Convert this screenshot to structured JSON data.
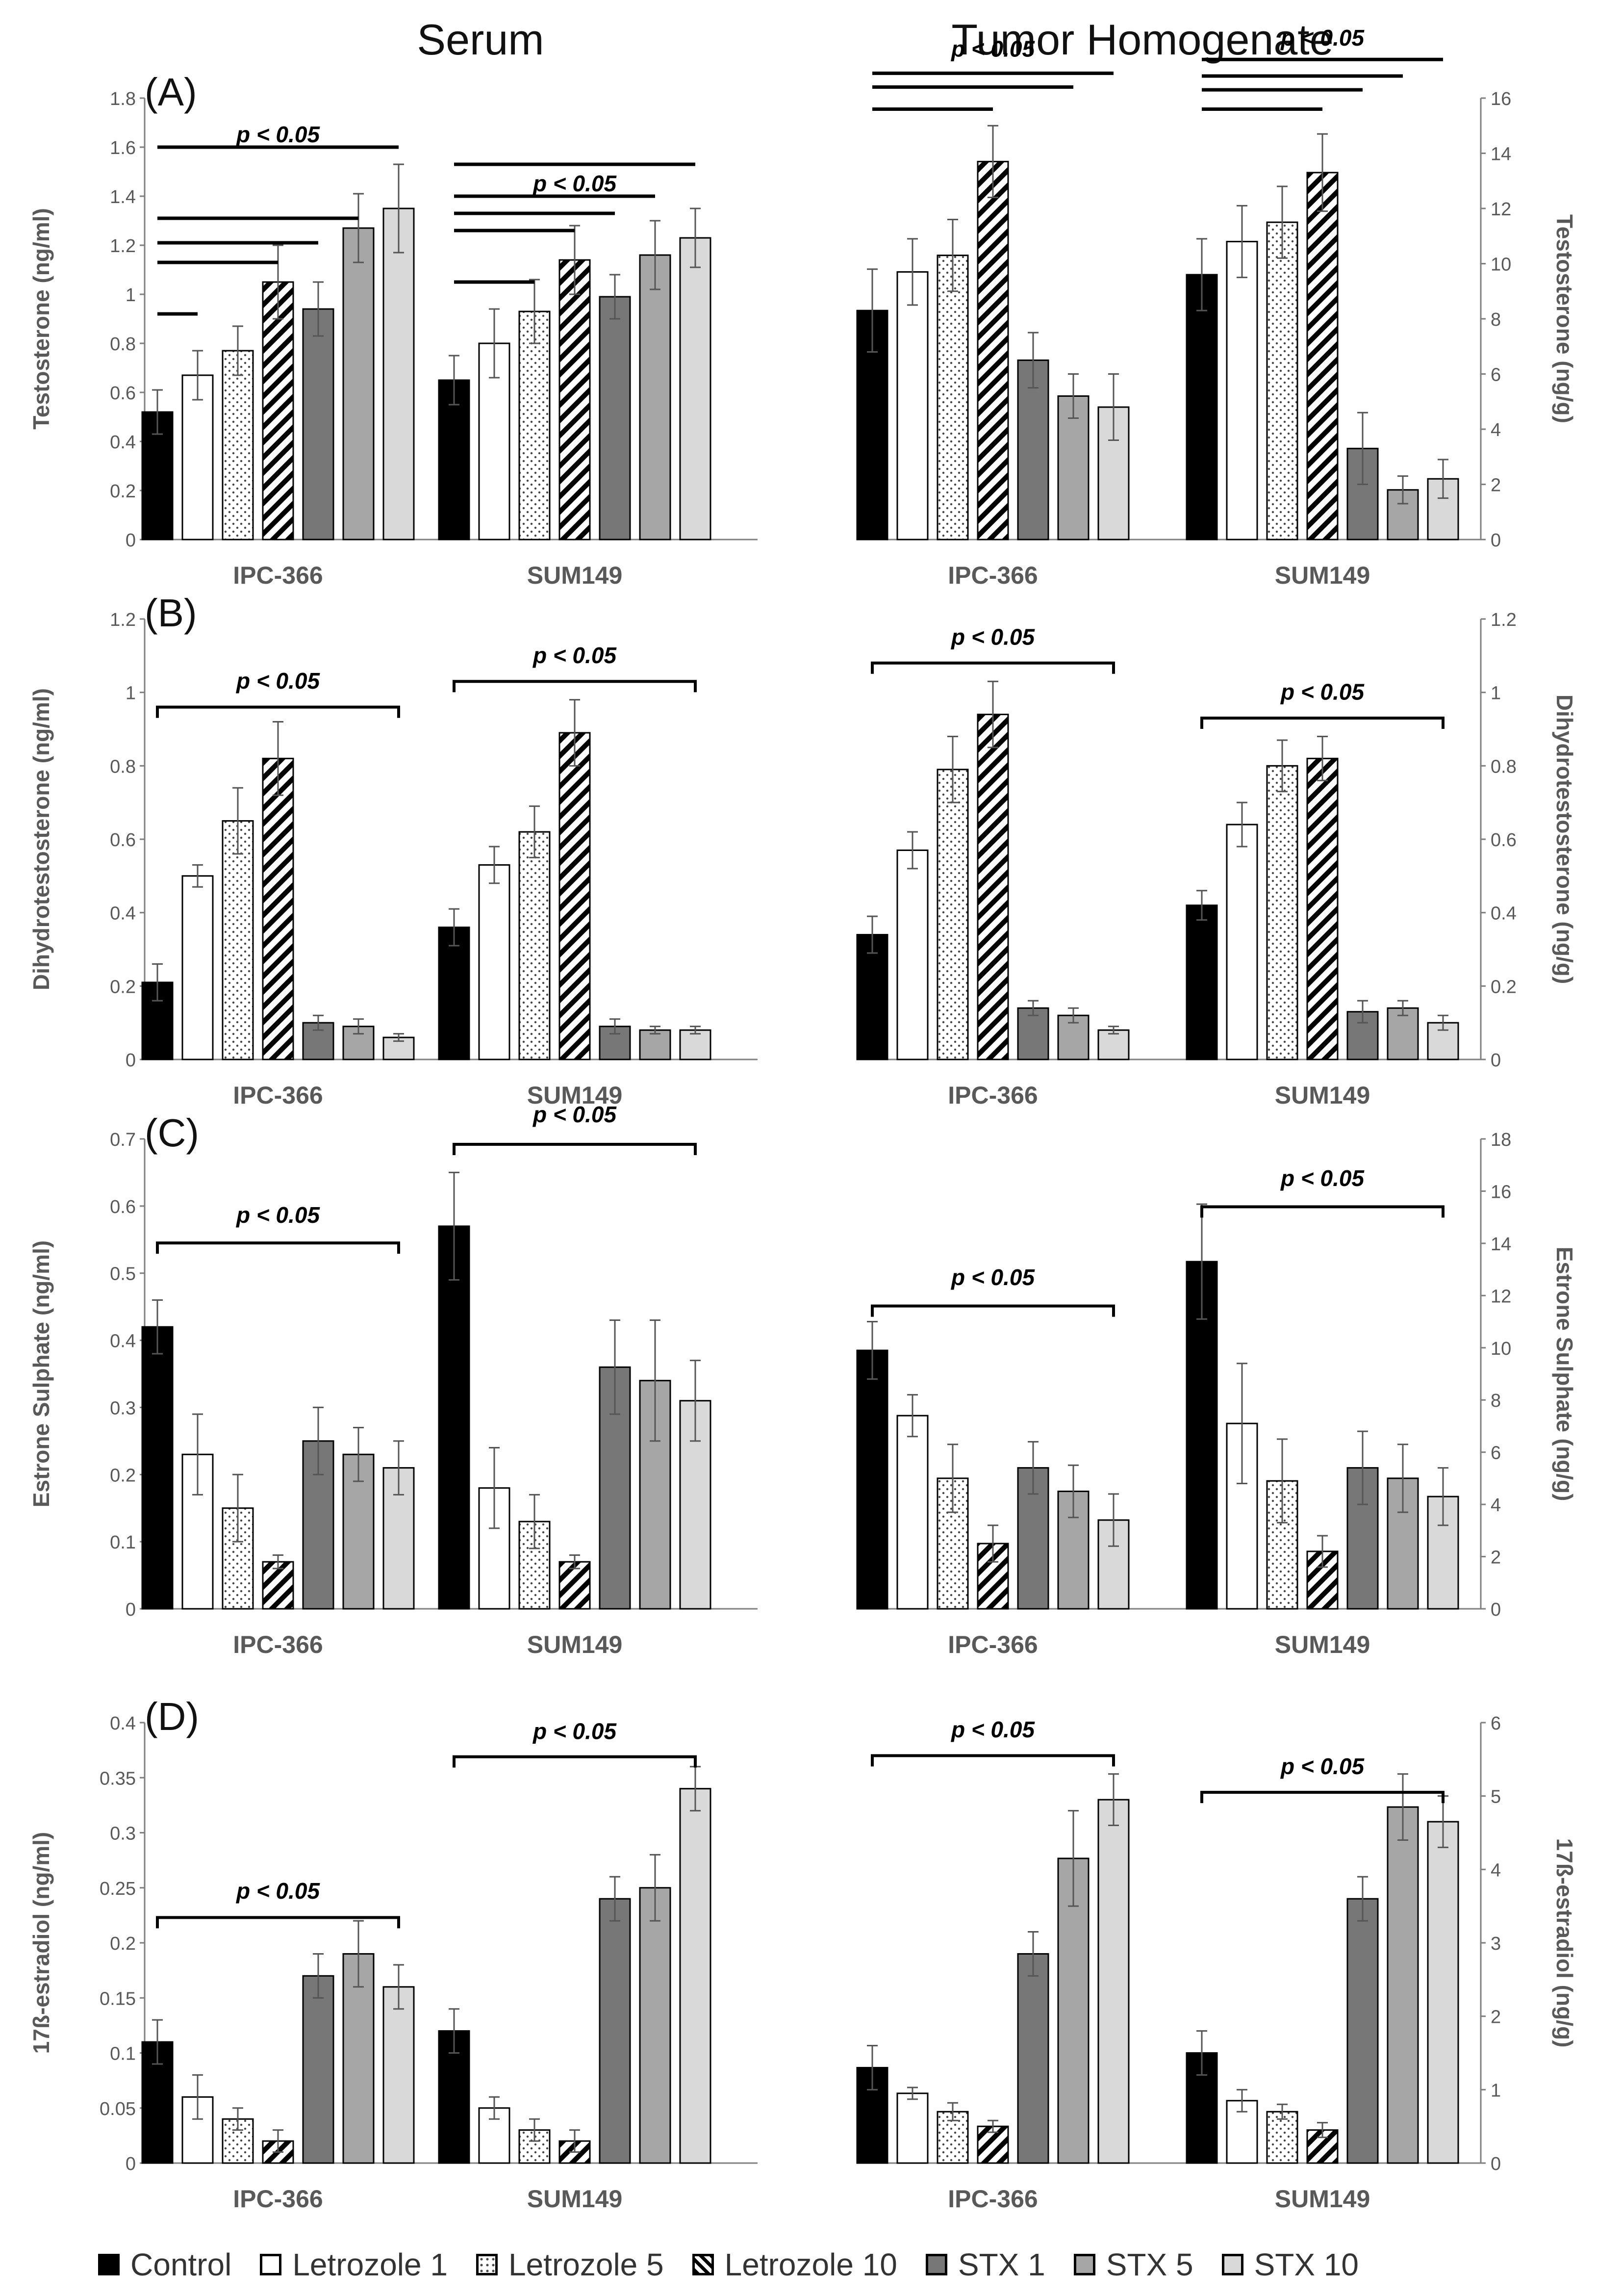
{
  "figure": {
    "column_titles": [
      "Serum",
      "Tumor Homogenate"
    ],
    "legend": [
      {
        "label": "Control",
        "fill": "#000000",
        "pattern": "solid"
      },
      {
        "label": "Letrozole 1",
        "fill": "#ffffff",
        "pattern": "solid"
      },
      {
        "label": "Letrozole 5",
        "fill": "#ffffff",
        "pattern": "dots"
      },
      {
        "label": "Letrozole 10",
        "fill": "#ffffff",
        "pattern": "diag"
      },
      {
        "label": "STX 1",
        "fill": "#777777",
        "pattern": "solid"
      },
      {
        "label": "STX 5",
        "fill": "#a6a6a6",
        "pattern": "solid"
      },
      {
        "label": "STX 10",
        "fill": "#d9d9d9",
        "pattern": "solid"
      }
    ]
  },
  "chart_data": [
    {
      "type": "bar",
      "panel": "(A)",
      "column": "Serum",
      "ylabel": "Testosterone (ng/ml)",
      "axis_side": "left",
      "ylim": [
        0,
        1.8
      ],
      "ticks": [
        "0",
        "0.2",
        "0.4",
        "0.6",
        "0.8",
        "1",
        "1.2",
        "1.4",
        "1.6",
        "1.8"
      ],
      "categories": [
        "IPC-366",
        "SUM149"
      ],
      "values": [
        [
          0.52,
          0.67,
          0.77,
          1.05,
          0.94,
          1.27,
          1.35
        ],
        [
          0.65,
          0.8,
          0.93,
          1.14,
          0.99,
          1.16,
          1.23
        ]
      ],
      "errors": [
        [
          0.09,
          0.1,
          0.1,
          0.15,
          0.11,
          0.14,
          0.18
        ],
        [
          0.1,
          0.14,
          0.13,
          0.14,
          0.09,
          0.14,
          0.12
        ]
      ],
      "annotations": [
        {
          "text": "p < 0.05",
          "at": 1.62,
          "group": 0
        },
        {
          "text": "p < 0.05",
          "at": 1.42,
          "group": 1
        }
      ],
      "sig_lines": [
        {
          "group": 0,
          "to": 1,
          "at": 0.92
        },
        {
          "group": 0,
          "to": 3,
          "at": 1.13
        },
        {
          "group": 0,
          "to": 4,
          "at": 1.21
        },
        {
          "group": 0,
          "to": 5,
          "at": 1.31
        },
        {
          "group": 0,
          "to": 6,
          "at": 1.6
        },
        {
          "group": 1,
          "to": 2,
          "at": 1.05
        },
        {
          "group": 1,
          "to": 3,
          "at": 1.26
        },
        {
          "group": 1,
          "to": 4,
          "at": 1.33
        },
        {
          "group": 1,
          "to": 5,
          "at": 1.4
        },
        {
          "group": 1,
          "to": 6,
          "at": 1.53
        }
      ]
    },
    {
      "type": "bar",
      "panel": "",
      "column": "Tumor Homogenate",
      "ylabel": "Testosterone (ng/g)",
      "axis_side": "right",
      "ylim": [
        0,
        16
      ],
      "ticks": [
        "0",
        "2",
        "4",
        "6",
        "8",
        "10",
        "12",
        "14",
        "16"
      ],
      "categories": [
        "IPC-366",
        "SUM149"
      ],
      "values": [
        [
          8.3,
          9.7,
          10.3,
          13.7,
          6.5,
          5.2,
          4.8
        ],
        [
          9.6,
          10.8,
          11.5,
          13.3,
          3.3,
          1.8,
          2.2
        ]
      ],
      "errors": [
        [
          1.5,
          1.2,
          1.3,
          1.3,
          1.0,
          0.8,
          1.2
        ],
        [
          1.3,
          1.3,
          1.3,
          1.4,
          1.3,
          0.5,
          0.7
        ]
      ],
      "annotations": [
        {
          "text": "p < 0.05",
          "at": 17.5,
          "group": 0
        },
        {
          "text": "p < 0.05",
          "at": 17.9,
          "group": 1
        }
      ],
      "sig_lines": [
        {
          "group": 0,
          "to": 3,
          "at": 15.6
        },
        {
          "group": 0,
          "to": 5,
          "at": 16.4
        },
        {
          "group": 0,
          "to": 6,
          "at": 16.9
        },
        {
          "group": 1,
          "to": 3,
          "at": 15.6
        },
        {
          "group": 1,
          "to": 4,
          "at": 16.3
        },
        {
          "group": 1,
          "to": 5,
          "at": 16.8
        },
        {
          "group": 1,
          "to": 6,
          "at": 17.4
        }
      ]
    },
    {
      "type": "bar",
      "panel": "(B)",
      "column": "Serum",
      "ylabel": "Dihydrotestosterone (ng/ml)",
      "axis_side": "left",
      "ylim": [
        0,
        1.2
      ],
      "ticks": [
        "0",
        "0.2",
        "0.4",
        "0.6",
        "0.8",
        "1",
        "1.2"
      ],
      "categories": [
        "IPC-366",
        "SUM149"
      ],
      "values": [
        [
          0.21,
          0.5,
          0.65,
          0.82,
          0.1,
          0.09,
          0.06
        ],
        [
          0.36,
          0.53,
          0.62,
          0.89,
          0.09,
          0.08,
          0.08
        ]
      ],
      "errors": [
        [
          0.05,
          0.03,
          0.09,
          0.1,
          0.02,
          0.02,
          0.01
        ],
        [
          0.05,
          0.05,
          0.07,
          0.09,
          0.02,
          0.01,
          0.01
        ]
      ],
      "annotations": [
        {
          "text": "p < 0.05",
          "at": 1.01,
          "group": 0
        },
        {
          "text": "p < 0.05",
          "at": 1.08,
          "group": 1
        }
      ],
      "brackets": [
        {
          "group": 0,
          "at": 0.96
        },
        {
          "group": 1,
          "at": 1.03
        }
      ]
    },
    {
      "type": "bar",
      "panel": "",
      "column": "Tumor Homogenate",
      "ylabel": "Dihydrotestosterone (ng/g)",
      "axis_side": "right",
      "ylim": [
        0,
        1.2
      ],
      "ticks": [
        "0",
        "0.2",
        "0.4",
        "0.6",
        "0.8",
        "1",
        "1.2"
      ],
      "categories": [
        "IPC-366",
        "SUM149"
      ],
      "values": [
        [
          0.34,
          0.57,
          0.79,
          0.94,
          0.14,
          0.12,
          0.08
        ],
        [
          0.42,
          0.64,
          0.8,
          0.82,
          0.13,
          0.14,
          0.1
        ]
      ],
      "errors": [
        [
          0.05,
          0.05,
          0.09,
          0.09,
          0.02,
          0.02,
          0.01
        ],
        [
          0.04,
          0.06,
          0.07,
          0.06,
          0.03,
          0.02,
          0.02
        ]
      ],
      "annotations": [
        {
          "text": "p < 0.05",
          "at": 1.13,
          "group": 0
        },
        {
          "text": "p < 0.05",
          "at": 0.98,
          "group": 1
        }
      ],
      "brackets": [
        {
          "group": 0,
          "at": 1.08
        },
        {
          "group": 1,
          "at": 0.93
        }
      ]
    },
    {
      "type": "bar",
      "panel": "(C)",
      "column": "Serum",
      "ylabel": "Estrone Sulphate (ng/ml)",
      "axis_side": "left",
      "ylim": [
        0,
        0.7
      ],
      "ticks": [
        "0",
        "0.1",
        "0.2",
        "0.3",
        "0.4",
        "0.5",
        "0.6",
        "0.7"
      ],
      "categories": [
        "IPC-366",
        "SUM149"
      ],
      "values": [
        [
          0.42,
          0.23,
          0.15,
          0.07,
          0.25,
          0.23,
          0.21
        ],
        [
          0.57,
          0.18,
          0.13,
          0.07,
          0.36,
          0.34,
          0.31
        ]
      ],
      "errors": [
        [
          0.04,
          0.06,
          0.05,
          0.01,
          0.05,
          0.04,
          0.04
        ],
        [
          0.08,
          0.06,
          0.04,
          0.01,
          0.07,
          0.09,
          0.06
        ]
      ],
      "annotations": [
        {
          "text": "p < 0.05",
          "at": 0.575,
          "group": 0
        },
        {
          "text": "p < 0.05",
          "at": 0.725,
          "group": 1
        }
      ],
      "brackets": [
        {
          "group": 0,
          "at": 0.545
        },
        {
          "group": 1,
          "at": 0.692
        }
      ]
    },
    {
      "type": "bar",
      "panel": "",
      "column": "Tumor Homogenate",
      "ylabel": "Estrone Sulphate (ng/g)",
      "axis_side": "right",
      "ylim": [
        0,
        18
      ],
      "ticks": [
        "0",
        "2",
        "4",
        "6",
        "8",
        "10",
        "12",
        "14",
        "16",
        "18"
      ],
      "categories": [
        "IPC-366",
        "SUM149"
      ],
      "values": [
        [
          9.9,
          7.4,
          5.0,
          2.5,
          5.4,
          4.5,
          3.4
        ],
        [
          13.3,
          7.1,
          4.9,
          2.2,
          5.4,
          5.0,
          4.3
        ]
      ],
      "errors": [
        [
          1.1,
          0.8,
          1.3,
          0.7,
          1.0,
          1.0,
          1.0
        ],
        [
          2.2,
          2.3,
          1.6,
          0.6,
          1.4,
          1.3,
          1.1
        ]
      ],
      "annotations": [
        {
          "text": "p < 0.05",
          "at": 12.4,
          "group": 0
        },
        {
          "text": "p < 0.05",
          "at": 16.2,
          "group": 1
        }
      ],
      "brackets": [
        {
          "group": 0,
          "at": 11.6
        },
        {
          "group": 1,
          "at": 15.4
        }
      ]
    },
    {
      "type": "bar",
      "panel": "(D)",
      "column": "Serum",
      "ylabel": "17ß-estradiol (ng/ml)",
      "axis_side": "left",
      "ylim": [
        0,
        0.4
      ],
      "ticks": [
        "0",
        "0.05",
        "0.1",
        "0.15",
        "0.2",
        "0.25",
        "0.3",
        "0.35",
        "0.4"
      ],
      "categories": [
        "IPC-366",
        "SUM149"
      ],
      "values": [
        [
          0.11,
          0.06,
          0.04,
          0.02,
          0.17,
          0.19,
          0.16
        ],
        [
          0.12,
          0.05,
          0.03,
          0.02,
          0.24,
          0.25,
          0.34
        ]
      ],
      "errors": [
        [
          0.02,
          0.02,
          0.01,
          0.01,
          0.02,
          0.03,
          0.02
        ],
        [
          0.02,
          0.01,
          0.01,
          0.01,
          0.02,
          0.03,
          0.02
        ]
      ],
      "annotations": [
        {
          "text": "p < 0.05",
          "at": 0.24,
          "group": 0
        },
        {
          "text": "p < 0.05",
          "at": 0.385,
          "group": 1
        }
      ],
      "brackets": [
        {
          "group": 0,
          "at": 0.223
        },
        {
          "group": 1,
          "at": 0.369
        }
      ]
    },
    {
      "type": "bar",
      "panel": "",
      "column": "Tumor Homogenate",
      "ylabel": "17ß-estradiol (ng/g)",
      "axis_side": "right",
      "ylim": [
        0,
        6
      ],
      "ticks": [
        "0",
        "1",
        "2",
        "3",
        "4",
        "5",
        "6"
      ],
      "categories": [
        "IPC-366",
        "SUM149"
      ],
      "values": [
        [
          1.3,
          0.95,
          0.7,
          0.5,
          2.85,
          4.15,
          4.95
        ],
        [
          1.5,
          0.85,
          0.7,
          0.45,
          3.6,
          4.85,
          4.65
        ]
      ],
      "errors": [
        [
          0.3,
          0.08,
          0.12,
          0.08,
          0.3,
          0.65,
          0.35
        ],
        [
          0.3,
          0.15,
          0.1,
          0.1,
          0.3,
          0.45,
          0.35
        ]
      ],
      "annotations": [
        {
          "text": "p < 0.05",
          "at": 5.8,
          "group": 0
        },
        {
          "text": "p < 0.05",
          "at": 5.3,
          "group": 1
        }
      ],
      "brackets": [
        {
          "group": 0,
          "at": 5.55
        },
        {
          "group": 1,
          "at": 5.05
        }
      ]
    }
  ]
}
